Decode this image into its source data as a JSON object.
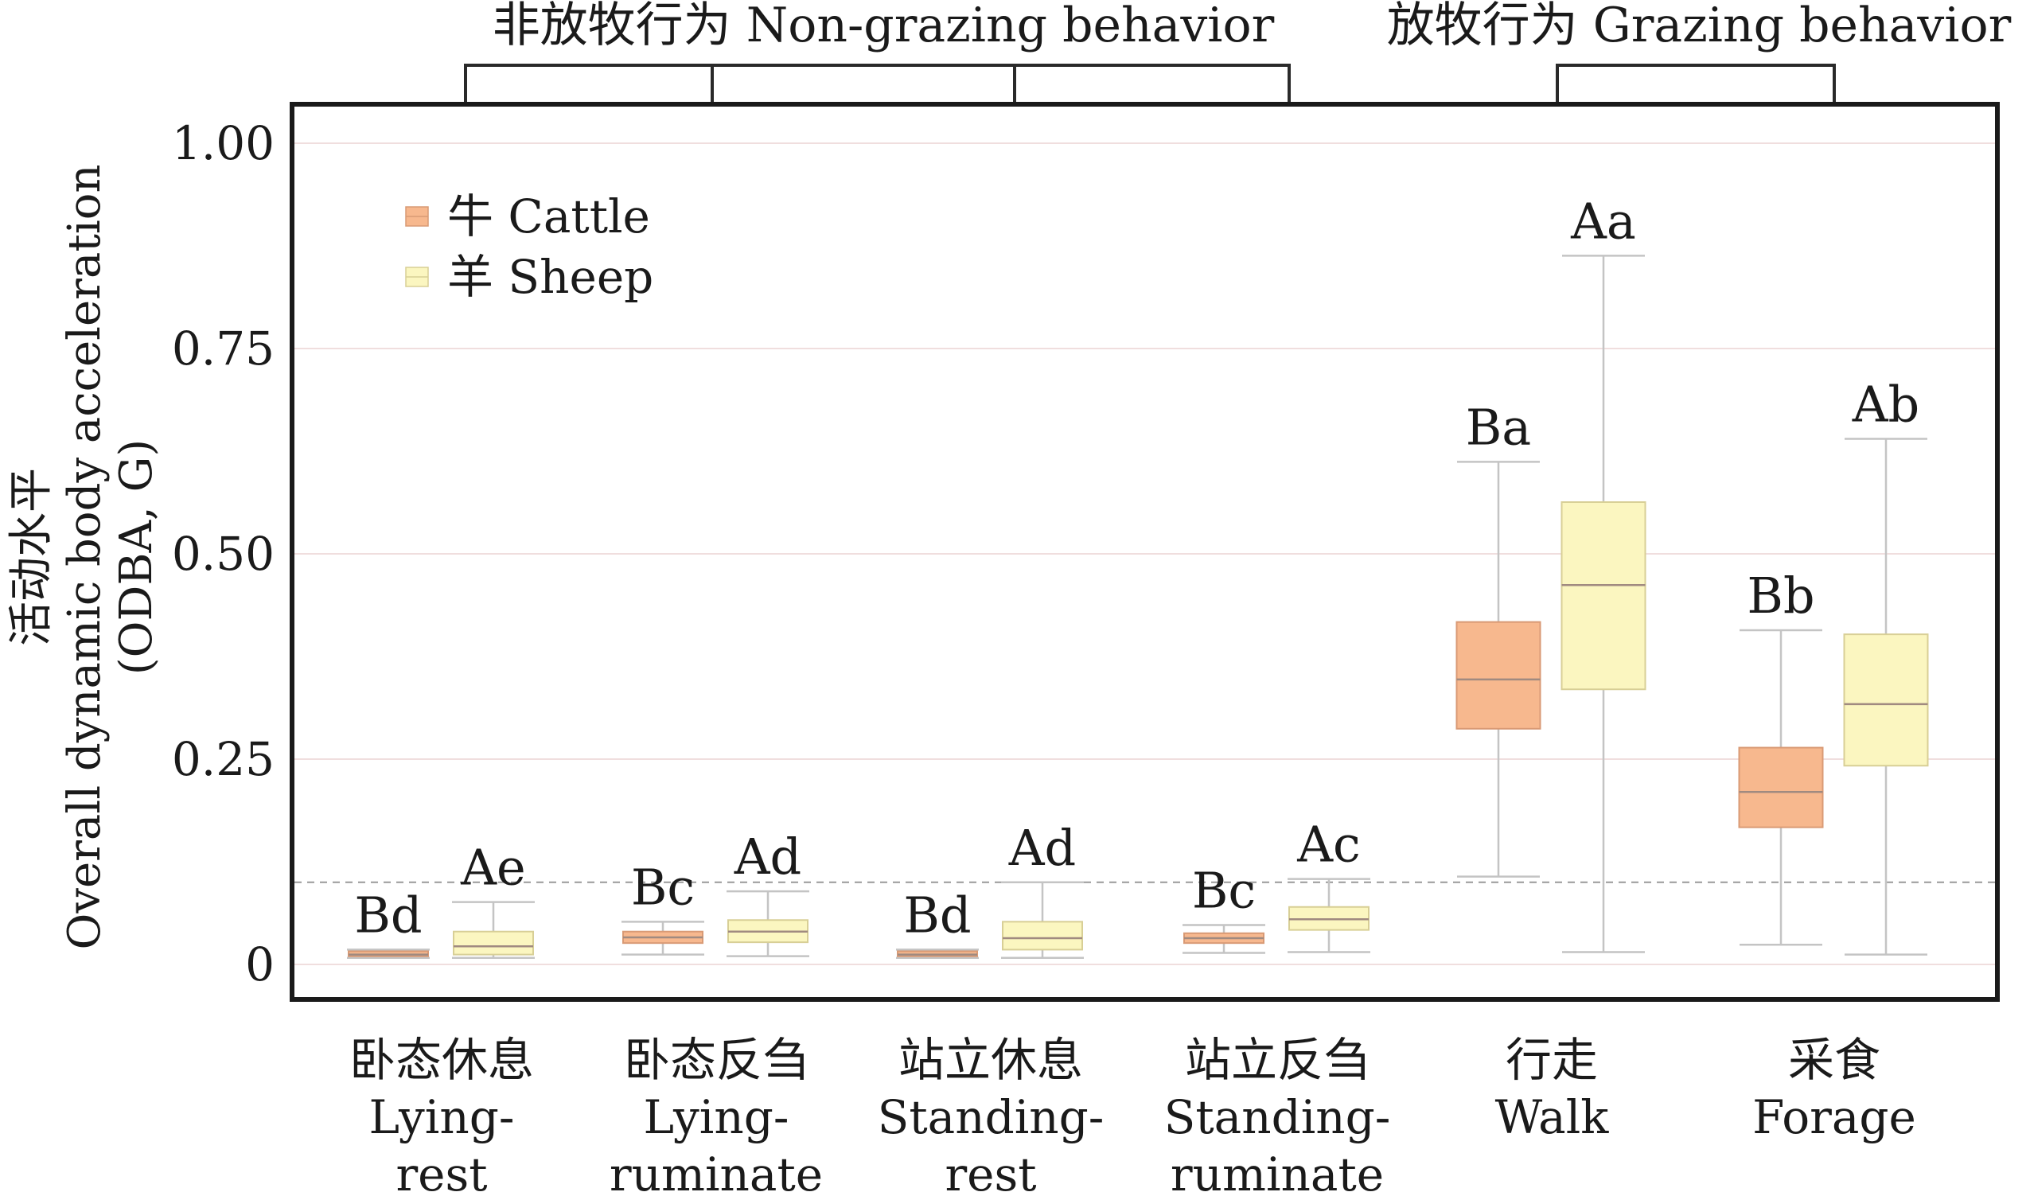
{
  "chart_data": {
    "type": "box",
    "ylabel_zh": "活动水平",
    "ylabel_en": "Overall dynamic body acceleration",
    "ylabel_unit": "(ODBA, G)",
    "ylim": [
      0,
      1.0
    ],
    "yticks": [
      0,
      0.25,
      0.5,
      0.75,
      1.0
    ],
    "ytick_labels": [
      "0",
      "0.25",
      "0.50",
      "0.75",
      "1.00"
    ],
    "threshold": 0.1,
    "groups": [
      {
        "label": "非放牧行为 Non-grazing behavior",
        "categories": [
          0,
          1,
          2,
          3
        ]
      },
      {
        "label": "放牧行为 Grazing behavior",
        "categories": [
          4,
          5
        ]
      }
    ],
    "categories": [
      {
        "zh": "卧态休息",
        "en1": "Lying-",
        "en2": "rest"
      },
      {
        "zh": "卧态反刍",
        "en1": "Lying-",
        "en2": "ruminate"
      },
      {
        "zh": "站立休息",
        "en1": "Standing-",
        "en2": "rest"
      },
      {
        "zh": "站立反刍",
        "en1": "Standing-",
        "en2": "ruminate"
      },
      {
        "zh": "行走",
        "en1": "Walk",
        "en2": ""
      },
      {
        "zh": "采食",
        "en1": "Forage",
        "en2": ""
      }
    ],
    "series": [
      {
        "name": "牛 Cattle",
        "color": "#f7b88e",
        "stroke": "#d99a75",
        "boxes": [
          {
            "min": 0.008,
            "q1": 0.01,
            "median": 0.012,
            "q3": 0.016,
            "max": 0.018,
            "label": "Bd"
          },
          {
            "min": 0.012,
            "q1": 0.026,
            "median": 0.033,
            "q3": 0.04,
            "max": 0.052,
            "label": "Bc"
          },
          {
            "min": 0.008,
            "q1": 0.01,
            "median": 0.012,
            "q3": 0.016,
            "max": 0.018,
            "label": "Bd"
          },
          {
            "min": 0.014,
            "q1": 0.026,
            "median": 0.032,
            "q3": 0.038,
            "max": 0.048,
            "label": "Bc"
          },
          {
            "min": 0.107,
            "q1": 0.287,
            "median": 0.347,
            "q3": 0.417,
            "max": 0.612,
            "label": "Ba"
          },
          {
            "min": 0.024,
            "q1": 0.167,
            "median": 0.21,
            "q3": 0.264,
            "max": 0.407,
            "label": "Bb"
          }
        ]
      },
      {
        "name": "羊 Sheep",
        "color": "#fbf6c0",
        "stroke": "#d8cf96",
        "boxes": [
          {
            "min": 0.008,
            "q1": 0.012,
            "median": 0.022,
            "q3": 0.04,
            "max": 0.076,
            "label": "Ae"
          },
          {
            "min": 0.01,
            "q1": 0.027,
            "median": 0.04,
            "q3": 0.054,
            "max": 0.089,
            "label": "Ad"
          },
          {
            "min": 0.008,
            "q1": 0.018,
            "median": 0.032,
            "q3": 0.052,
            "max": 0.1,
            "label": "Ad"
          },
          {
            "min": 0.015,
            "q1": 0.042,
            "median": 0.055,
            "q3": 0.07,
            "max": 0.104,
            "label": "Ac"
          },
          {
            "min": 0.015,
            "q1": 0.335,
            "median": 0.462,
            "q3": 0.563,
            "max": 0.863,
            "label": "Aa"
          },
          {
            "min": 0.012,
            "q1": 0.242,
            "median": 0.317,
            "q3": 0.402,
            "max": 0.64,
            "label": "Ab"
          }
        ]
      }
    ],
    "legend_position": "top-left"
  }
}
